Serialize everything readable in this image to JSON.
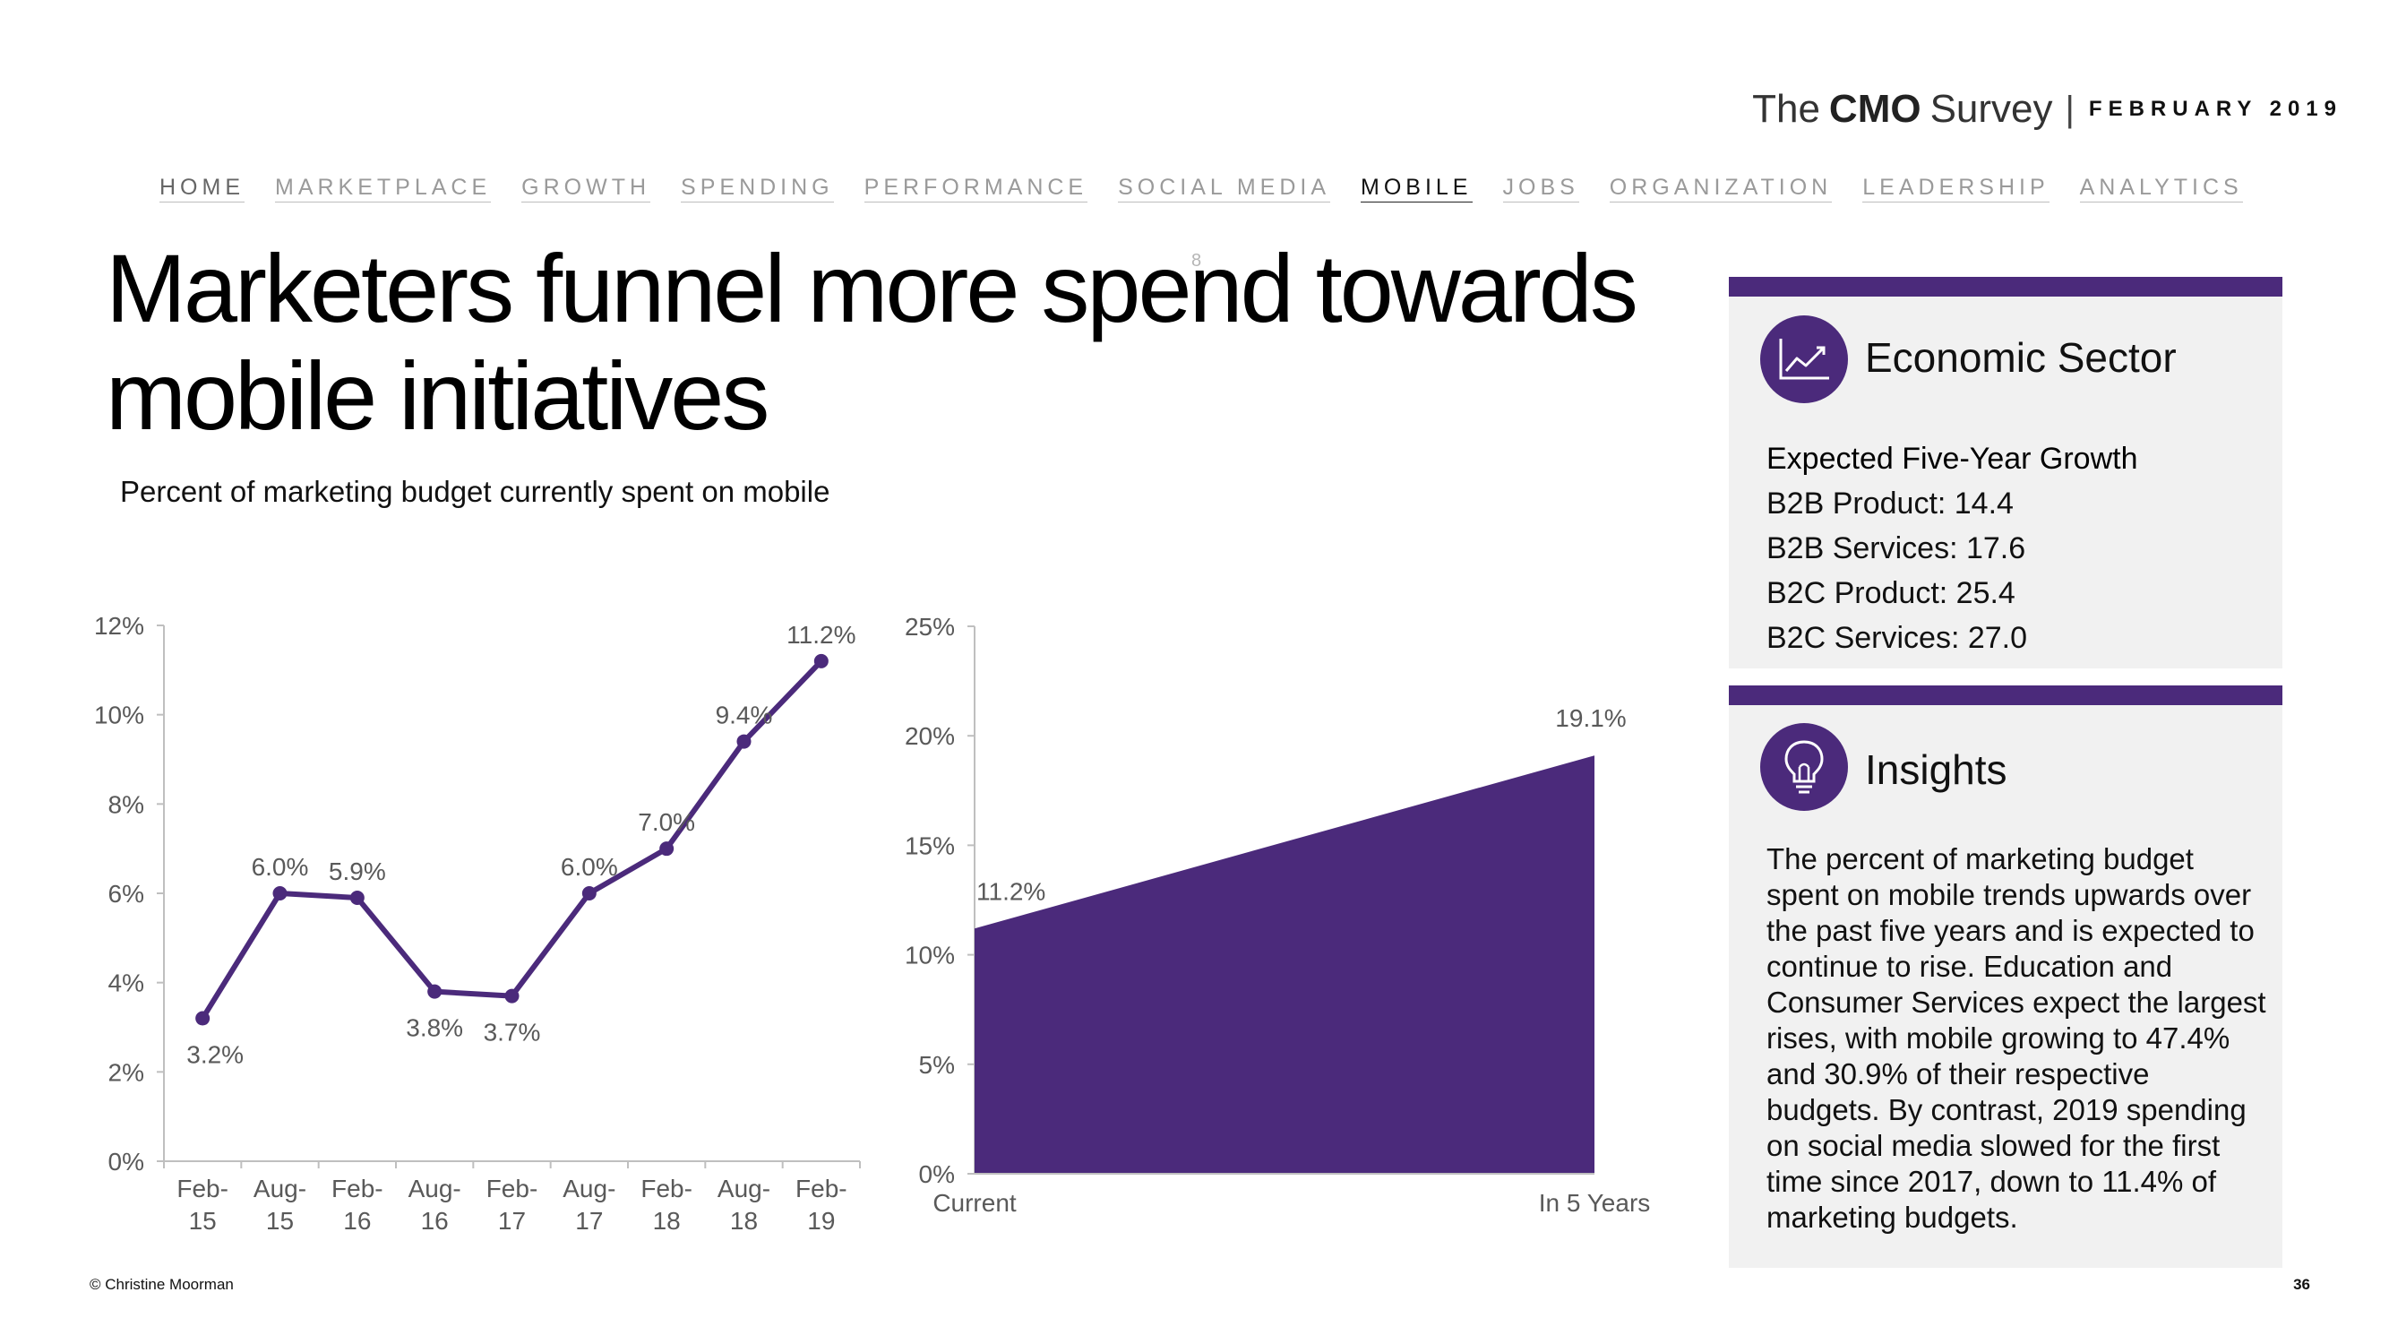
{
  "brand": {
    "the": "The",
    "cmo": "CMO",
    "survey": "Survey",
    "separator": "|",
    "date": "FEBRUARY 2019"
  },
  "nav": [
    "HOME",
    "MARKETPLACE",
    "GROWTH",
    "SPENDING",
    "PERFORMANCE",
    "SOCIAL MEDIA",
    "MOBILE",
    "JOBS",
    "ORGANIZATION",
    "LEADERSHIP",
    "ANALYTICS"
  ],
  "nav_active": "MOBILE",
  "title": "Marketers funnel more spend towards mobile initiatives",
  "stray_mark": "8",
  "subtitle": "Percent of marketing budget currently spent on mobile",
  "colors": {
    "accent": "#4b2a7b",
    "panel_bg": "#f1f1f1",
    "axis": "#bfbfbf",
    "text_muted": "#595959"
  },
  "chart_data": [
    {
      "type": "line",
      "categories": [
        [
          "Feb-",
          "15"
        ],
        [
          "Aug-",
          "15"
        ],
        [
          "Feb-",
          "16"
        ],
        [
          "Aug-",
          "16"
        ],
        [
          "Feb-",
          "17"
        ],
        [
          "Aug-",
          "17"
        ],
        [
          "Feb-",
          "18"
        ],
        [
          "Aug-",
          "18"
        ],
        [
          "Feb-",
          "19"
        ]
      ],
      "values": [
        3.2,
        6.0,
        5.9,
        3.8,
        3.7,
        6.0,
        7.0,
        9.4,
        11.2
      ],
      "data_labels": [
        "3.2%",
        "6.0%",
        "5.9%",
        "3.8%",
        "3.7%",
        "6.0%",
        "7.0%",
        "9.4%",
        "11.2%"
      ],
      "ylim": [
        0,
        12
      ],
      "yticks": [
        0,
        2,
        4,
        6,
        8,
        10,
        12
      ],
      "ytick_labels": [
        "0%",
        "2%",
        "4%",
        "6%",
        "8%",
        "10%",
        "12%"
      ],
      "title": "",
      "xlabel": "",
      "ylabel": "",
      "grid": false
    },
    {
      "type": "area",
      "categories": [
        "Current",
        "In 5 Years"
      ],
      "values": [
        11.2,
        19.1
      ],
      "data_labels": [
        "11.2%",
        "19.1%"
      ],
      "ylim": [
        0,
        25
      ],
      "yticks": [
        0,
        5,
        10,
        15,
        20,
        25
      ],
      "ytick_labels": [
        "0%",
        "5%",
        "10%",
        "15%",
        "20%",
        "25%"
      ],
      "title": "",
      "xlabel": "",
      "ylabel": "",
      "grid": false
    }
  ],
  "economic_sector": {
    "icon": "line-chart-icon",
    "heading": "Economic Sector",
    "subheading": "Expected Five-Year Growth",
    "items": [
      "B2B Product: 14.4",
      "B2B Services: 17.6",
      "B2C Product: 25.4",
      "B2C Services: 27.0"
    ]
  },
  "insights": {
    "icon": "lightbulb-icon",
    "heading": "Insights",
    "text": "The percent of marketing budget spent on mobile trends upwards over the past five years and is expected to continue to rise. Education and Consumer Services expect the largest rises, with mobile growing to 47.4% and 30.9% of their respective budgets. By contrast, 2019 spending on social media slowed for the first time since 2017, down to 11.4% of marketing budgets."
  },
  "footer": {
    "copyright": "© Christine Moorman",
    "page_number": "36"
  }
}
